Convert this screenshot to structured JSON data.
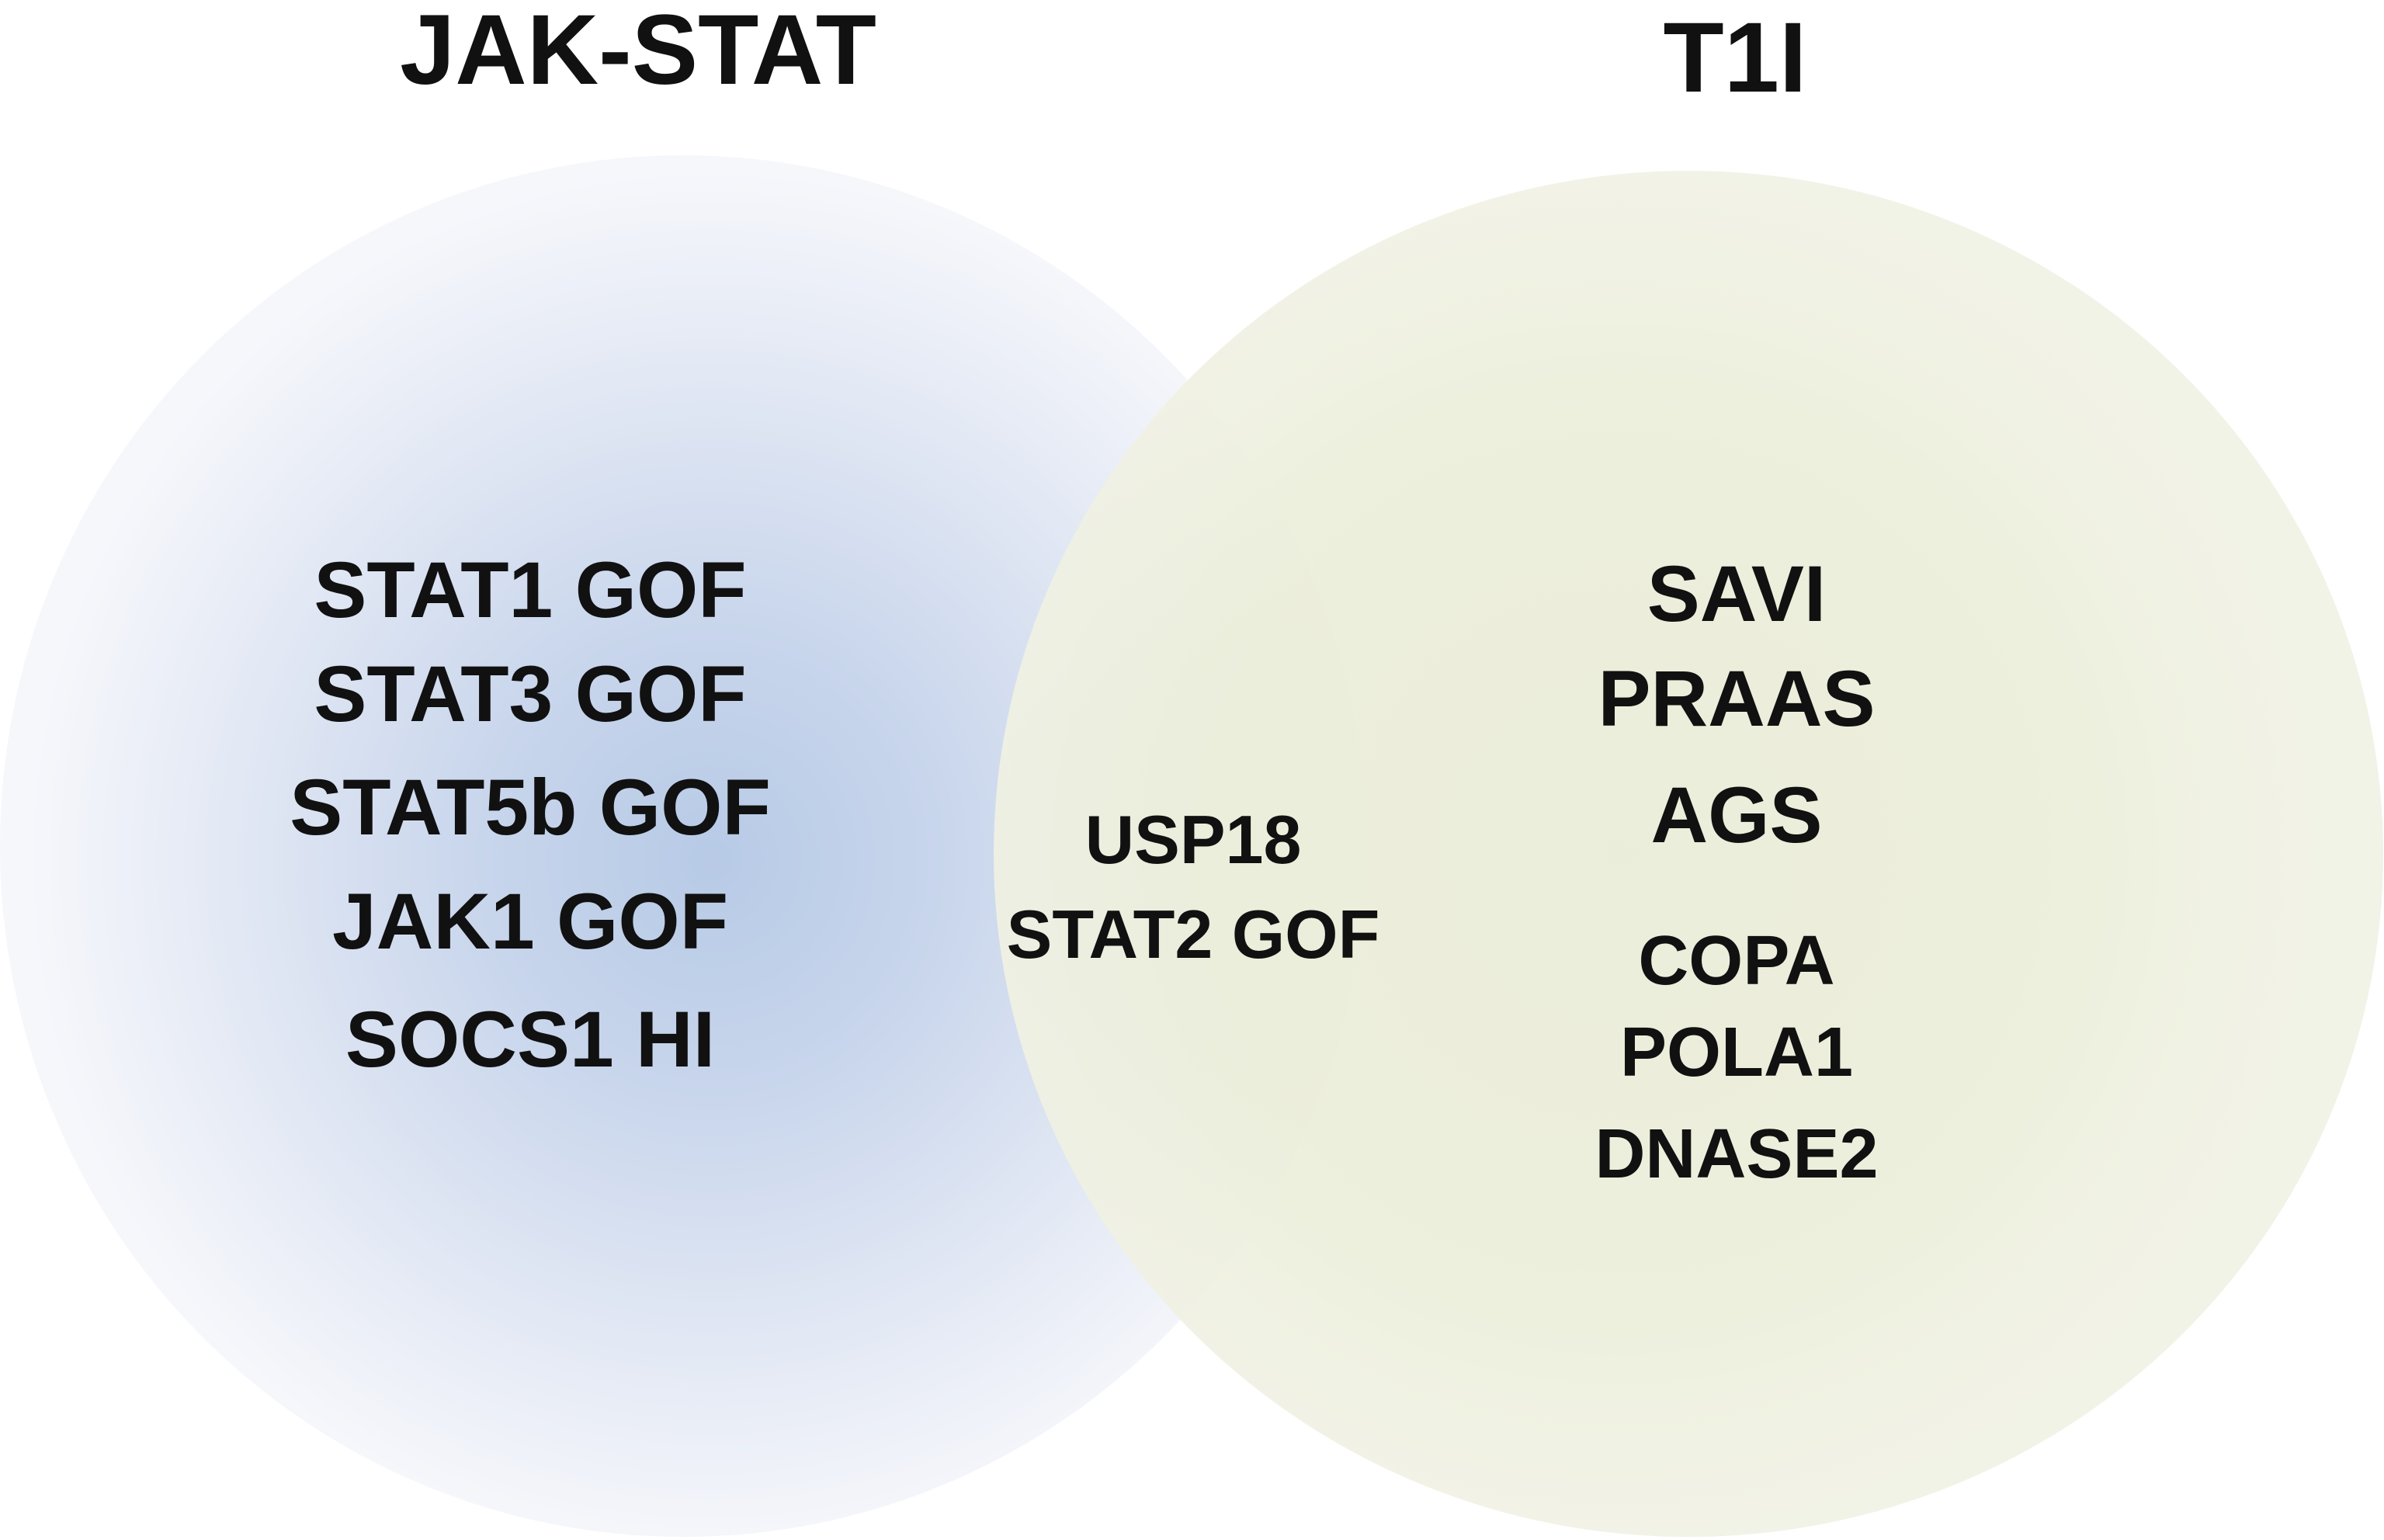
{
  "colors": {
    "left_set_center": "#b4c8e6",
    "left_set_edge": "#f4f6fb",
    "right_set_center": "#e8ebd5",
    "right_set_edge": "#f1f2e4",
    "text": "#111111"
  },
  "sets": {
    "left": {
      "title": "JAK-STAT",
      "members": [
        "STAT1 GOF",
        "STAT3 GOF",
        "STAT5b GOF",
        "JAK1 GOF",
        "SOCS1 HI"
      ]
    },
    "right": {
      "title": "T1I",
      "members_major": [
        "SAVI",
        "PRAAS",
        "AGS"
      ],
      "members_minor": [
        "COPA",
        "POLA1",
        "DNASE2"
      ]
    },
    "intersection": {
      "members": [
        "USP18",
        "STAT2 GOF"
      ]
    }
  }
}
